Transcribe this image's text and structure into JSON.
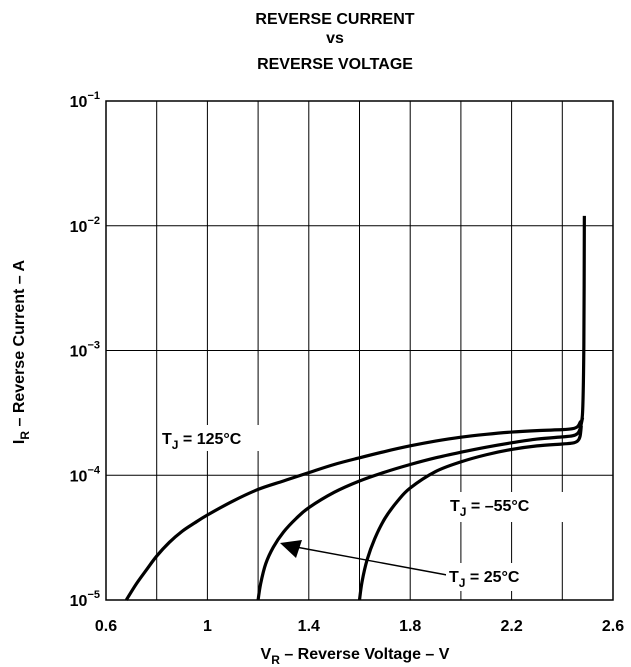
{
  "chart_data": {
    "type": "line",
    "title": [
      "REVERSE CURRENT",
      "vs",
      "REVERSE VOLTAGE"
    ],
    "xlabel": {
      "main": "V",
      "sub": "R",
      "rest": " – Reverse Voltage – V"
    },
    "ylabel": {
      "main": "I",
      "sub": "R",
      "rest": " – Reverse Current – A"
    },
    "x_scale": "linear",
    "y_scale": "log",
    "xlim": [
      0.6,
      2.6
    ],
    "ylim": [
      1e-05,
      0.1
    ],
    "grid": true,
    "x_ticks": [
      {
        "value": 0.6,
        "label": "0.6"
      },
      {
        "value": 1.0,
        "label": "1"
      },
      {
        "value": 1.4,
        "label": "1.4"
      },
      {
        "value": 1.8,
        "label": "1.8"
      },
      {
        "value": 2.2,
        "label": "2.2"
      },
      {
        "value": 2.6,
        "label": "2.6"
      }
    ],
    "x_grid": [
      0.6,
      0.8,
      1.0,
      1.2,
      1.4,
      1.6,
      1.8,
      2.0,
      2.2,
      2.4,
      2.6
    ],
    "y_ticks": [
      {
        "value": 0.1,
        "base": "10",
        "exp": "−1"
      },
      {
        "value": 0.01,
        "base": "10",
        "exp": "−2"
      },
      {
        "value": 0.001,
        "base": "10",
        "exp": "−3"
      },
      {
        "value": 0.0001,
        "base": "10",
        "exp": "−4"
      },
      {
        "value": 1e-05,
        "base": "10",
        "exp": "−5"
      }
    ],
    "series": [
      {
        "name": "TJ = 125°C",
        "x": [
          0.68,
          0.72,
          0.76,
          0.8,
          0.85,
          0.9,
          0.95,
          1.0,
          1.1,
          1.2,
          1.3,
          1.4,
          1.5,
          1.6,
          1.7,
          1.8,
          1.9,
          2.0,
          2.1,
          2.2,
          2.3,
          2.4,
          2.44,
          2.46,
          2.47,
          2.48,
          2.485,
          2.487
        ],
        "y": [
          1e-05,
          1.35e-05,
          1.75e-05,
          2.25e-05,
          2.9e-05,
          3.55e-05,
          4.15e-05,
          4.8e-05,
          6.2e-05,
          7.7e-05,
          9e-05,
          0.000105,
          0.000122,
          0.000138,
          0.000155,
          0.000172,
          0.000188,
          0.000202,
          0.000213,
          0.000222,
          0.000228,
          0.000232,
          0.000236,
          0.000245,
          0.000265,
          0.00032,
          0.0011,
          0.012
        ]
      },
      {
        "name": "TJ = 25°C",
        "x": [
          1.2,
          1.21,
          1.23,
          1.26,
          1.3,
          1.35,
          1.4,
          1.5,
          1.6,
          1.7,
          1.8,
          1.9,
          2.0,
          2.1,
          2.2,
          2.3,
          2.4,
          2.44,
          2.46,
          2.47,
          2.48
        ],
        "y": [
          1e-05,
          1.35e-05,
          1.95e-05,
          2.65e-05,
          3.5e-05,
          4.5e-05,
          5.5e-05,
          7.3e-05,
          9e-05,
          0.000106,
          0.000122,
          0.000138,
          0.000153,
          0.000168,
          0.000182,
          0.000195,
          0.000203,
          0.000207,
          0.000216,
          0.000235,
          0.00029
        ]
      },
      {
        "name": "TJ = −55°C",
        "x": [
          1.6,
          1.61,
          1.63,
          1.66,
          1.7,
          1.75,
          1.8,
          1.9,
          2.0,
          2.1,
          2.2,
          2.3,
          2.4,
          2.44,
          2.46,
          2.47,
          2.475
        ],
        "y": [
          1e-05,
          1.4e-05,
          2.1e-05,
          3.1e-05,
          4.5e-05,
          6.2e-05,
          7.9e-05,
          0.000107,
          0.000128,
          0.000146,
          0.000161,
          0.000172,
          0.000178,
          0.000181,
          0.000188,
          0.000205,
          0.00025
        ]
      }
    ],
    "annotations": [
      {
        "series": 0,
        "T": "T",
        "sub": "J",
        "rest": " = 125°C"
      },
      {
        "series": 2,
        "T": "T",
        "sub": "J",
        "rest": " = –55°C"
      },
      {
        "series": 1,
        "T": "T",
        "sub": "J",
        "rest": " = 25°C"
      }
    ]
  }
}
